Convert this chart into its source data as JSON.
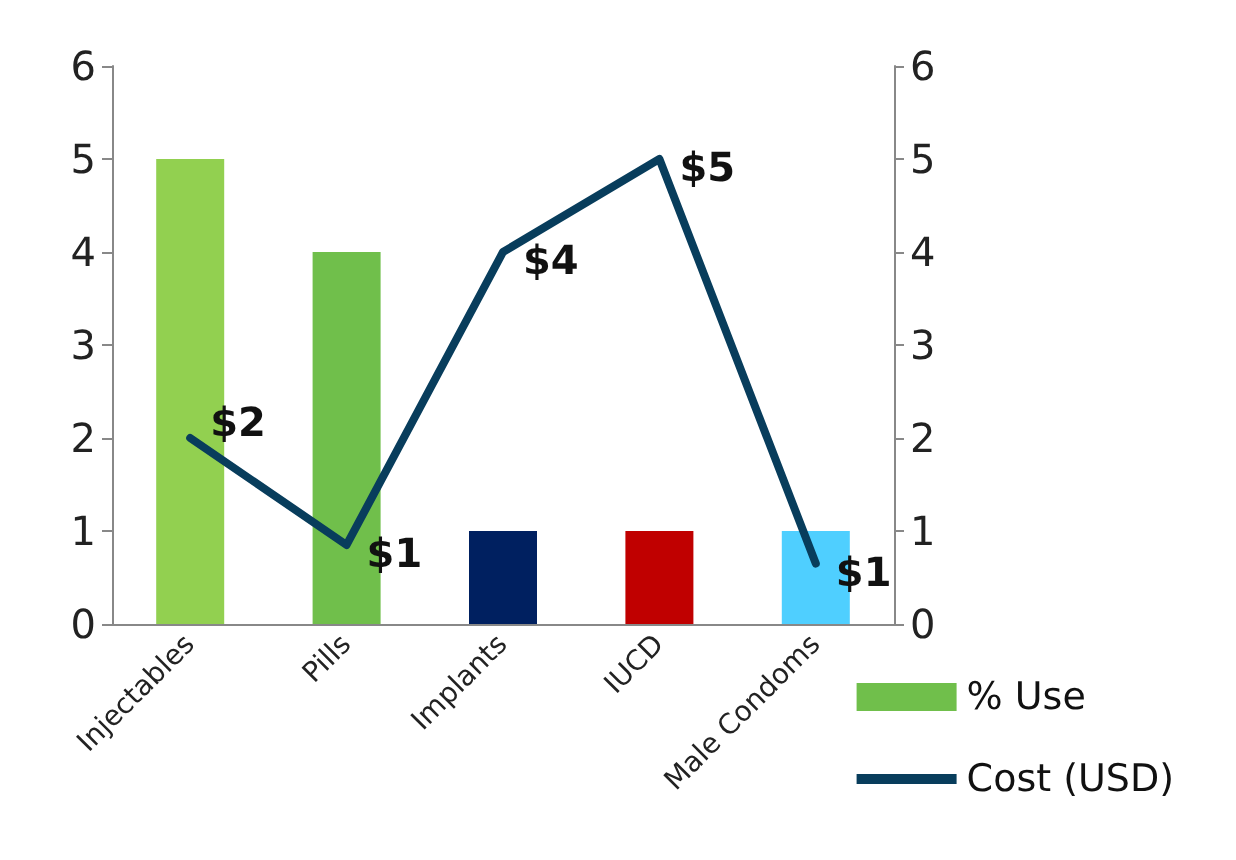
{
  "chart_data": {
    "type": "bar",
    "categories": [
      "Injectables",
      "Pills",
      "Implants",
      "IUCD",
      "Male Condoms"
    ],
    "series": [
      {
        "name": "% Use",
        "color": "#70bf4b",
        "colors": [
          "#92d050",
          "#70bf4b",
          "#002060",
          "#c00000",
          "#4fcfff"
        ],
        "values": [
          5,
          4,
          1,
          1,
          1
        ]
      },
      {
        "name": "Cost (USD)",
        "type": "line",
        "color": "#083d5c",
        "values": [
          2,
          0.85,
          4,
          5,
          0.65
        ],
        "value_labels": [
          "$2",
          "$1",
          "$4",
          "$5",
          "$1"
        ]
      }
    ],
    "ylim": [
      0,
      6
    ],
    "yticks": [
      0,
      1,
      2,
      3,
      4,
      5,
      6
    ],
    "y2lim": [
      0,
      6
    ],
    "y2ticks": [
      0,
      1,
      2,
      3,
      4,
      5,
      6
    ],
    "grid": false,
    "legend": "bottom right",
    "marker": "none",
    "line_style": "solid"
  }
}
